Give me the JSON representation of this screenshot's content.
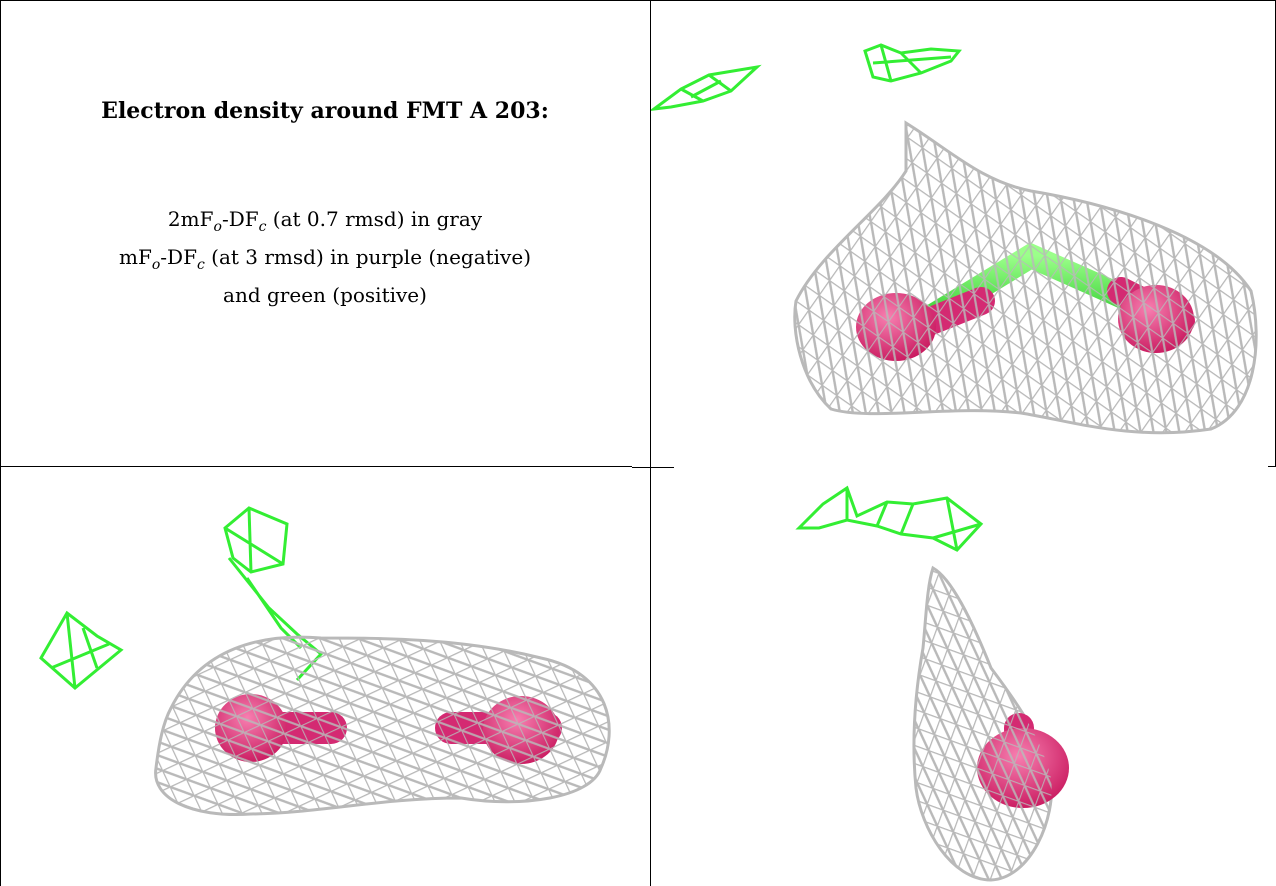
{
  "caption": {
    "title": "Electron density around FMT A 203:",
    "line1": {
      "prefix": "2mF",
      "sub_o": "o",
      "middle": "-DF",
      "sub_c": "c",
      "suffix": " (at 0.7 rmsd) in gray"
    },
    "line2": {
      "prefix": "mF",
      "sub_o": "o",
      "middle": "-DF",
      "sub_c": "c",
      "suffix": " (at 3 rmsd) in purple (negative)"
    },
    "line3": "and green (positive)"
  },
  "colors": {
    "mesh_gray": "#b9b9b9",
    "positive_green": "#33ee33",
    "negative_purple": "#e0307a",
    "border": "#000000"
  },
  "panels": [
    {
      "id": "top-right",
      "view": "view-1"
    },
    {
      "id": "bottom-left",
      "view": "view-2"
    },
    {
      "id": "bottom-right",
      "view": "view-3"
    }
  ]
}
